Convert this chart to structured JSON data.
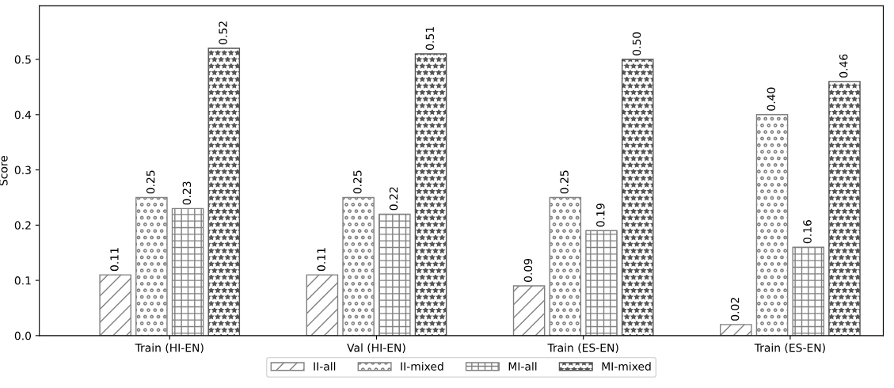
{
  "chart_data": {
    "type": "bar",
    "ylabel": "Score",
    "categories": [
      "Train (HI-EN)",
      "Val (HI-EN)",
      "Train (ES-EN)",
      "Train (ES-EN)"
    ],
    "series": [
      {
        "name": "II-all",
        "color": "#808080",
        "values": [
          0.11,
          0.11,
          0.09,
          0.02
        ]
      },
      {
        "name": "II-mixed",
        "color": "#808080",
        "values": [
          0.25,
          0.25,
          0.25,
          0.4
        ]
      },
      {
        "name": "MI-all",
        "color": "#808080",
        "values": [
          0.23,
          0.22,
          0.19,
          0.16
        ]
      },
      {
        "name": "MI-mixed",
        "color": "#555555",
        "values": [
          0.52,
          0.51,
          0.5,
          0.46
        ]
      }
    ],
    "value_labels": [
      [
        "0.11",
        "0.11",
        "0.09",
        "0.02"
      ],
      [
        "0.25",
        "0.25",
        "0.25",
        "0.40"
      ],
      [
        "0.23",
        "0.22",
        "0.19",
        "0.16"
      ],
      [
        "0.52",
        "0.51",
        "0.50",
        "0.46"
      ]
    ],
    "ylim": [
      0,
      0.597
    ],
    "yticks": [
      {
        "value": 0,
        "label": "0.0"
      },
      0.1,
      0.2,
      0.3,
      0.4,
      0.5
    ],
    "grid": false,
    "legend": "bottom"
  }
}
